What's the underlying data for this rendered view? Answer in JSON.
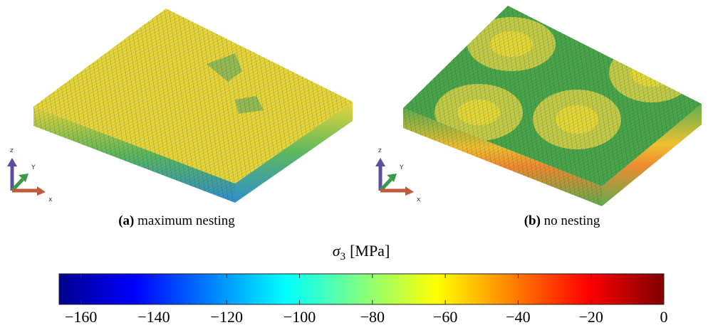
{
  "panels": [
    {
      "label": "(a)",
      "caption": "maximum nesting",
      "axes": [
        "z",
        "Y",
        "x"
      ]
    },
    {
      "label": "(b)",
      "caption": "no nesting",
      "axes": [
        "z",
        "Y",
        "x"
      ]
    }
  ],
  "chart_data": {
    "type": "colorbar",
    "label": {
      "symbol": "σ",
      "subscript": "3",
      "unit": "[MPa]"
    },
    "colormap": "jet",
    "xlim": [
      -166,
      0
    ],
    "xticks": [
      {
        "value": -160,
        "label": "−160"
      },
      {
        "value": -140,
        "label": "−140"
      },
      {
        "value": -120,
        "label": "−120"
      },
      {
        "value": -100,
        "label": "−100"
      },
      {
        "value": -80,
        "label": "−80"
      },
      {
        "value": -60,
        "label": "−60"
      },
      {
        "value": -40,
        "label": "−40"
      },
      {
        "value": -20,
        "label": "−20"
      },
      0
    ]
  }
}
